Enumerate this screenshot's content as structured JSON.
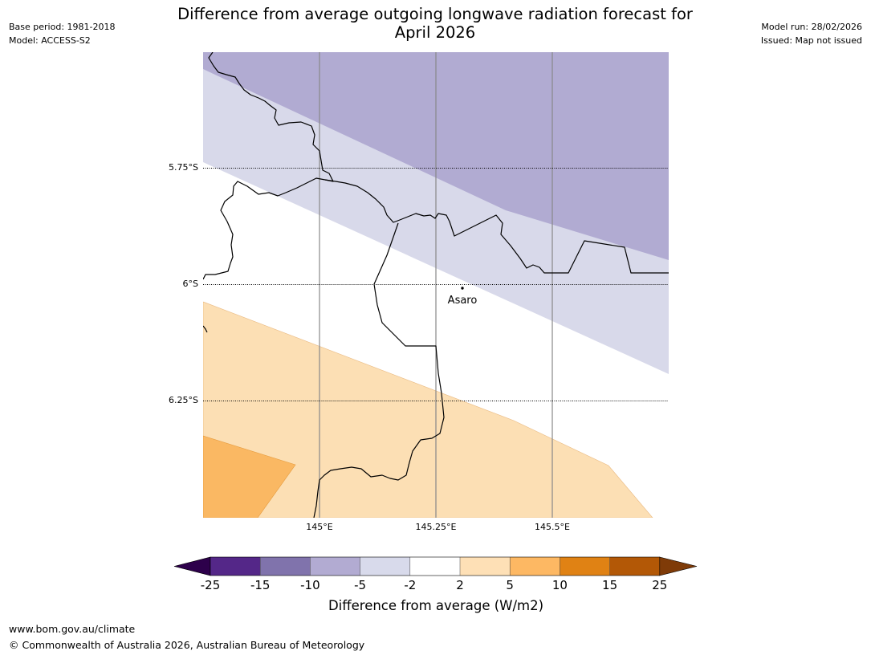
{
  "header": {
    "base_period": "Base period: 1981-2018",
    "model": "Model: ACCESS-S2",
    "title_line1": "Difference from average outgoing longwave radiation forecast for",
    "title_line2": "April 2026",
    "model_run": "Model run: 28/02/2026",
    "issued": "Issued: Map not issued"
  },
  "map": {
    "latitude_labels": [
      "5.75°S",
      "6°S",
      "6.25°S"
    ],
    "longitude_labels": [
      "145°E",
      "145.25°E",
      "145.5°E"
    ],
    "place": {
      "name": "Asaro"
    },
    "colors": {
      "strong_negative": "#b1abd2",
      "weak_negative": "#d8d9ea",
      "neutral": "#ffffff",
      "weak_positive": "#fcdfb4",
      "moderate_positive": "#fab863",
      "border": "#000000",
      "gridline": "#888888"
    }
  },
  "colorbar": {
    "ticks": [
      "-25",
      "-15",
      "-10",
      "-5",
      "-2",
      "2",
      "5",
      "10",
      "15",
      "25"
    ],
    "colors": [
      "#2d004b",
      "#542788",
      "#8073ac",
      "#b2abd2",
      "#d8daeb",
      "#ffffff",
      "#fee0b6",
      "#fdb863",
      "#e08214",
      "#b35806",
      "#7f3b08"
    ],
    "title": "Difference from average (W/m2)"
  },
  "footer": {
    "url": "www.bom.gov.au/climate",
    "copyright": "© Commonwealth of Australia 2026, Australian Bureau of Meteorology"
  }
}
